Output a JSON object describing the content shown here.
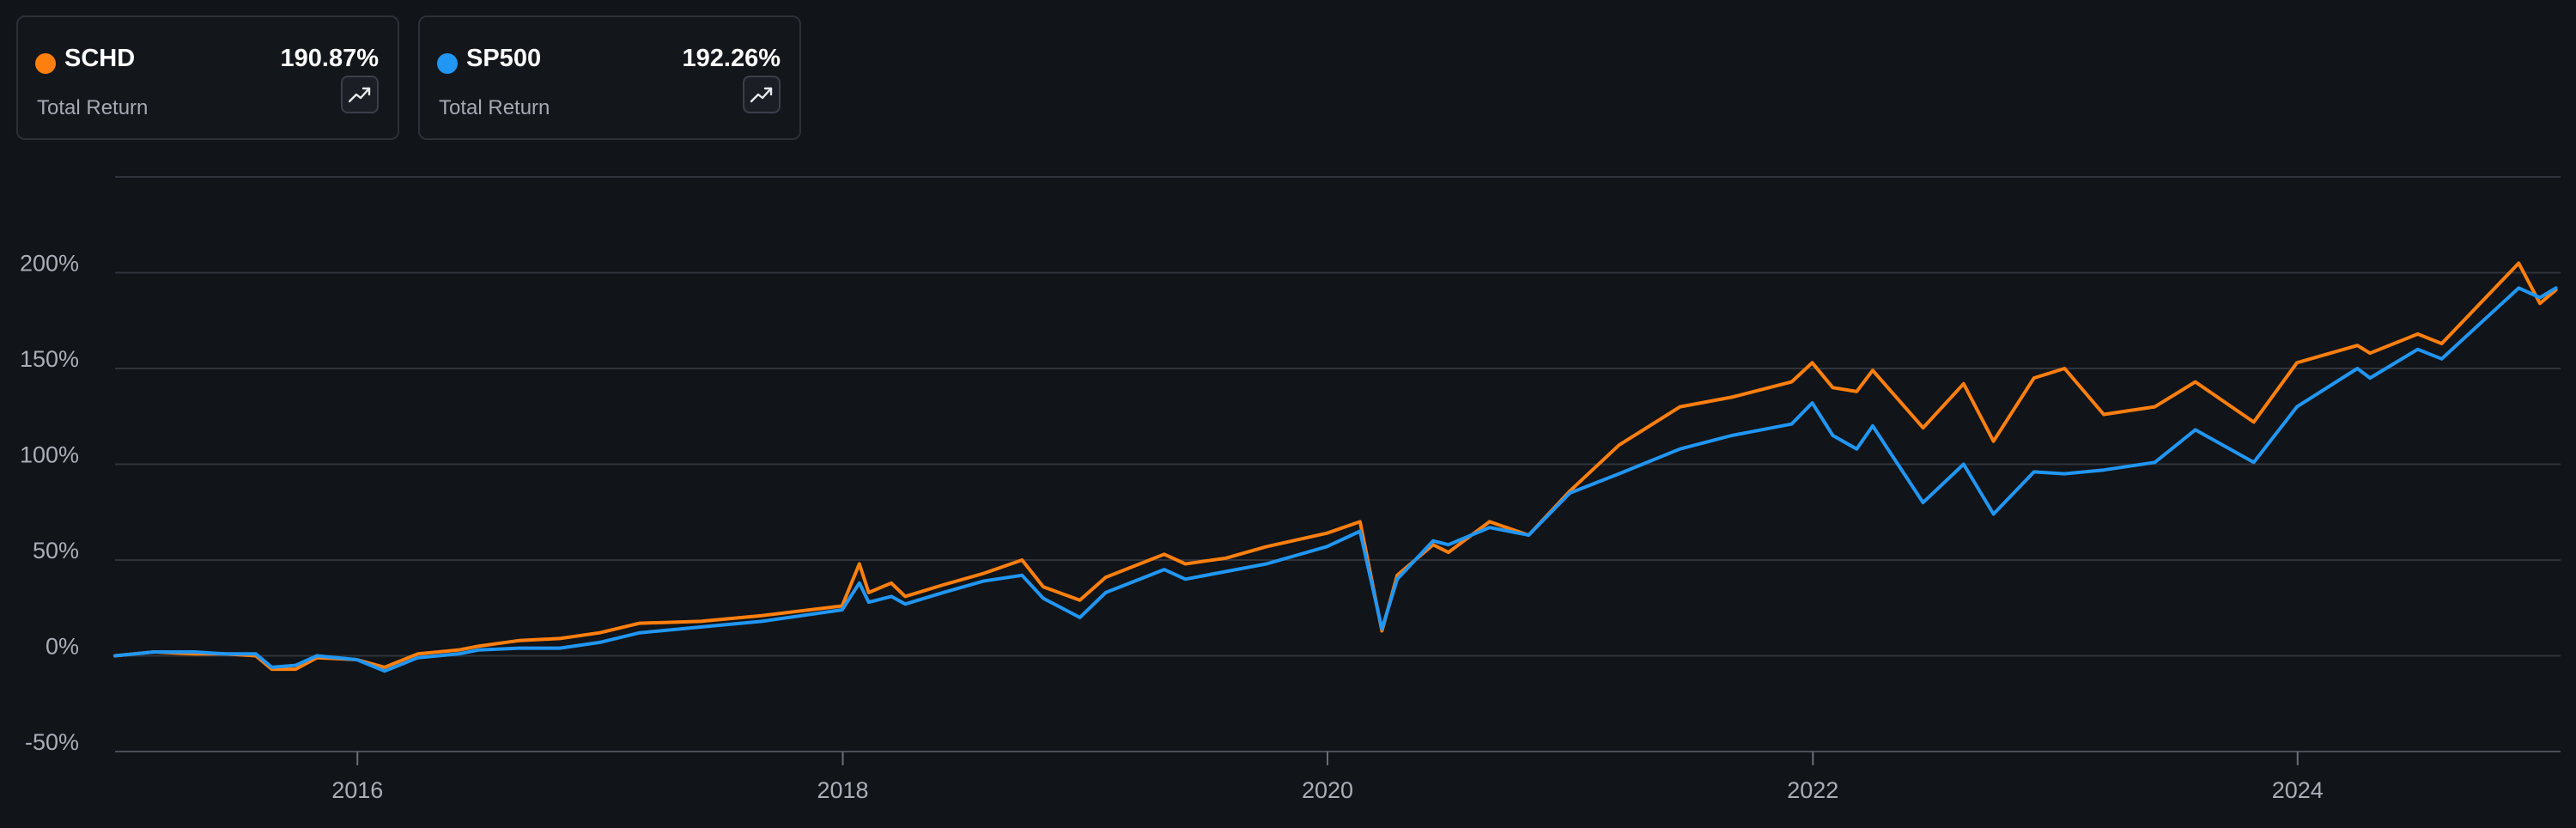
{
  "legend": [
    {
      "ticker": "SCHD",
      "value": "190.87%",
      "metric": "Total Return",
      "color": "#ff7f0e",
      "icon": "trend-up-icon"
    },
    {
      "ticker": "SP500",
      "value": "192.26%",
      "metric": "Total Return",
      "color": "#2196f3",
      "icon": "trend-up-icon"
    }
  ],
  "chart_data": {
    "type": "line",
    "title": "",
    "xlabel": "",
    "ylabel": "",
    "x_tick_labels": [
      "2016",
      "2018",
      "2020",
      "2022",
      "2024"
    ],
    "y_tick_labels": [
      "-50%",
      "0%",
      "50%",
      "100%",
      "150%",
      "200%"
    ],
    "ylim": [
      -50,
      250
    ],
    "xlim": [
      "2015-01-01",
      "2025-01-31"
    ],
    "grid": true,
    "legend_position": "top-left",
    "series": [
      {
        "name": "SCHD",
        "color": "#ff7f0e",
        "points": [
          [
            "2015-01-01",
            0
          ],
          [
            "2015-03-01",
            2
          ],
          [
            "2015-05-01",
            1
          ],
          [
            "2015-06-15",
            1
          ],
          [
            "2015-08-01",
            0
          ],
          [
            "2015-08-25",
            -7
          ],
          [
            "2015-09-30",
            -7
          ],
          [
            "2015-11-01",
            -1
          ],
          [
            "2015-12-31",
            -2
          ],
          [
            "2016-02-11",
            -6
          ],
          [
            "2016-04-01",
            1
          ],
          [
            "2016-06-01",
            3
          ],
          [
            "2016-07-01",
            5
          ],
          [
            "2016-09-01",
            8
          ],
          [
            "2016-11-01",
            9
          ],
          [
            "2016-12-31",
            12
          ],
          [
            "2017-03-01",
            17
          ],
          [
            "2017-06-01",
            18
          ],
          [
            "2017-09-01",
            21
          ],
          [
            "2017-12-31",
            26
          ],
          [
            "2018-01-26",
            48
          ],
          [
            "2018-02-09",
            33
          ],
          [
            "2018-03-15",
            38
          ],
          [
            "2018-04-05",
            31
          ],
          [
            "2018-06-01",
            37
          ],
          [
            "2018-08-01",
            43
          ],
          [
            "2018-09-28",
            50
          ],
          [
            "2018-10-30",
            36
          ],
          [
            "2018-12-24",
            29
          ],
          [
            "2019-02-01",
            41
          ],
          [
            "2019-04-30",
            53
          ],
          [
            "2019-06-01",
            48
          ],
          [
            "2019-08-01",
            51
          ],
          [
            "2019-10-01",
            57
          ],
          [
            "2019-12-31",
            64
          ],
          [
            "2020-02-19",
            70
          ],
          [
            "2020-03-23",
            13
          ],
          [
            "2020-04-15",
            42
          ],
          [
            "2020-06-08",
            58
          ],
          [
            "2020-07-01",
            54
          ],
          [
            "2020-09-01",
            70
          ],
          [
            "2020-10-30",
            63
          ],
          [
            "2020-12-31",
            86
          ],
          [
            "2021-03-15",
            110
          ],
          [
            "2021-06-15",
            130
          ],
          [
            "2021-09-01",
            135
          ],
          [
            "2021-11-30",
            143
          ],
          [
            "2021-12-31",
            153
          ],
          [
            "2022-01-31",
            140
          ],
          [
            "2022-03-08",
            138
          ],
          [
            "2022-04-01",
            149
          ],
          [
            "2022-06-16",
            119
          ],
          [
            "2022-08-16",
            142
          ],
          [
            "2022-09-30",
            112
          ],
          [
            "2022-11-30",
            145
          ],
          [
            "2023-01-15",
            150
          ],
          [
            "2023-03-15",
            126
          ],
          [
            "2023-05-31",
            130
          ],
          [
            "2023-07-31",
            143
          ],
          [
            "2023-10-27",
            122
          ],
          [
            "2023-12-31",
            153
          ],
          [
            "2024-03-31",
            162
          ],
          [
            "2024-04-19",
            158
          ],
          [
            "2024-06-30",
            168
          ],
          [
            "2024-08-05",
            163
          ],
          [
            "2024-11-29",
            205
          ],
          [
            "2024-12-31",
            184
          ],
          [
            "2025-01-24",
            191
          ]
        ]
      },
      {
        "name": "SP500",
        "color": "#2196f3",
        "points": [
          [
            "2015-01-01",
            0
          ],
          [
            "2015-03-01",
            2
          ],
          [
            "2015-05-01",
            2
          ],
          [
            "2015-06-15",
            1
          ],
          [
            "2015-08-01",
            1
          ],
          [
            "2015-08-25",
            -6
          ],
          [
            "2015-09-30",
            -5
          ],
          [
            "2015-11-01",
            0
          ],
          [
            "2015-12-31",
            -2
          ],
          [
            "2016-02-11",
            -8
          ],
          [
            "2016-04-01",
            -1
          ],
          [
            "2016-06-01",
            1
          ],
          [
            "2016-07-01",
            3
          ],
          [
            "2016-09-01",
            4
          ],
          [
            "2016-11-01",
            4
          ],
          [
            "2016-12-31",
            7
          ],
          [
            "2017-03-01",
            12
          ],
          [
            "2017-06-01",
            15
          ],
          [
            "2017-09-01",
            18
          ],
          [
            "2017-12-31",
            24
          ],
          [
            "2018-01-26",
            38
          ],
          [
            "2018-02-09",
            28
          ],
          [
            "2018-03-15",
            31
          ],
          [
            "2018-04-05",
            27
          ],
          [
            "2018-06-01",
            33
          ],
          [
            "2018-08-01",
            39
          ],
          [
            "2018-09-28",
            42
          ],
          [
            "2018-10-30",
            30
          ],
          [
            "2018-12-24",
            20
          ],
          [
            "2019-02-01",
            33
          ],
          [
            "2019-04-30",
            45
          ],
          [
            "2019-06-01",
            40
          ],
          [
            "2019-08-01",
            44
          ],
          [
            "2019-10-01",
            48
          ],
          [
            "2019-12-31",
            57
          ],
          [
            "2020-02-19",
            65
          ],
          [
            "2020-03-23",
            14
          ],
          [
            "2020-04-15",
            40
          ],
          [
            "2020-06-08",
            60
          ],
          [
            "2020-07-01",
            58
          ],
          [
            "2020-09-01",
            67
          ],
          [
            "2020-10-30",
            63
          ],
          [
            "2020-12-31",
            85
          ],
          [
            "2021-03-15",
            95
          ],
          [
            "2021-06-15",
            108
          ],
          [
            "2021-09-01",
            115
          ],
          [
            "2021-11-30",
            121
          ],
          [
            "2021-12-31",
            132
          ],
          [
            "2022-01-31",
            115
          ],
          [
            "2022-03-08",
            108
          ],
          [
            "2022-04-01",
            120
          ],
          [
            "2022-06-16",
            80
          ],
          [
            "2022-08-16",
            100
          ],
          [
            "2022-09-30",
            74
          ],
          [
            "2022-11-30",
            96
          ],
          [
            "2023-01-15",
            95
          ],
          [
            "2023-03-15",
            97
          ],
          [
            "2023-05-31",
            101
          ],
          [
            "2023-07-31",
            118
          ],
          [
            "2023-10-27",
            101
          ],
          [
            "2023-12-31",
            130
          ],
          [
            "2024-03-31",
            150
          ],
          [
            "2024-04-19",
            145
          ],
          [
            "2024-06-30",
            160
          ],
          [
            "2024-08-05",
            155
          ],
          [
            "2024-11-29",
            192
          ],
          [
            "2024-12-31",
            187
          ],
          [
            "2025-01-24",
            192
          ]
        ]
      }
    ]
  }
}
